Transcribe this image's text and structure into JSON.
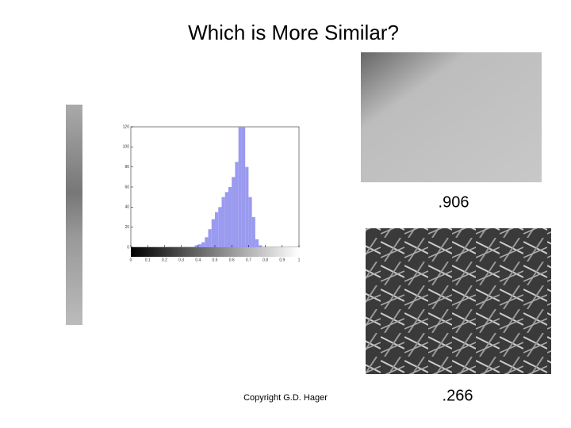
{
  "header": {
    "title": "Which is More Similar?"
  },
  "chart_data": {
    "type": "histogram",
    "bins": [
      0.38,
      0.4,
      0.42,
      0.44,
      0.46,
      0.48,
      0.5,
      0.52,
      0.54,
      0.56,
      0.58,
      0.6,
      0.62,
      0.64,
      0.66,
      0.68,
      0.7,
      0.72,
      0.74,
      0.76,
      0.78
    ],
    "counts": [
      2,
      3,
      5,
      10,
      18,
      28,
      35,
      40,
      50,
      55,
      60,
      70,
      85,
      120,
      120,
      80,
      50,
      30,
      8,
      2
    ],
    "color": "#9a9af0",
    "xlim": [
      0,
      1
    ],
    "xticks": [
      0,
      0.1,
      0.2,
      0.3,
      0.4,
      0.5,
      0.6,
      0.7,
      0.8,
      0.9,
      1
    ],
    "ylim": [
      0,
      120
    ],
    "yticks": [
      0,
      20,
      40,
      60,
      80,
      100,
      120
    ]
  },
  "scores": [
    ".906",
    ".266"
  ],
  "footer": {
    "copyright": "Copyright G.D. Hager"
  }
}
